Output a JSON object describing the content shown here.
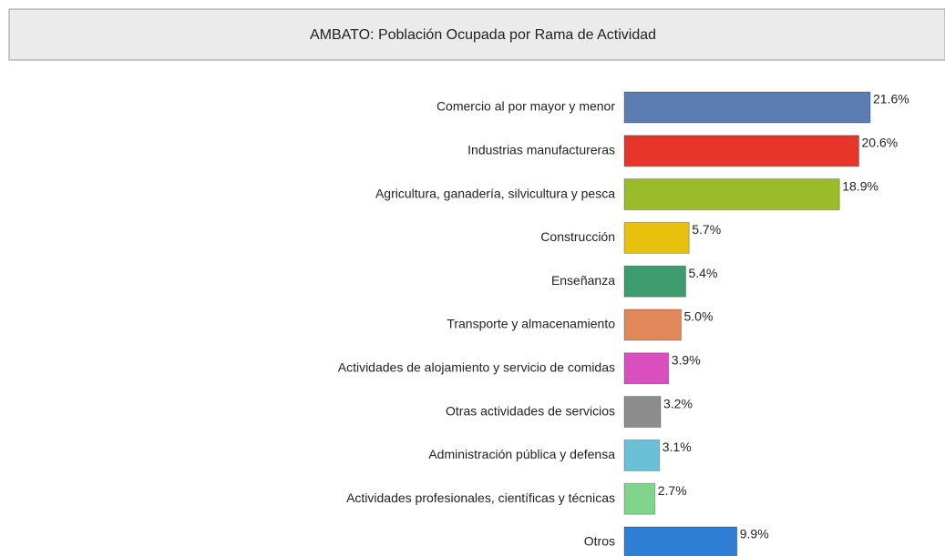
{
  "chart_data": {
    "type": "bar",
    "title": "AMBATO: Población Ocupada por Rama de Actividad",
    "categories": [
      "Comercio al por mayor y menor",
      "Industrias manufactureras",
      "Agricultura, ganadería, silvicultura y pesca",
      "Construcción",
      "Enseñanza",
      "Transporte y almacenamiento",
      "Actividades de alojamiento y servicio de comidas",
      "Otras actividades de servicios",
      "Administración pública y defensa",
      "Actividades profesionales, científicas y técnicas",
      "Otros"
    ],
    "values": [
      21.6,
      20.6,
      18.9,
      5.7,
      5.4,
      5.0,
      3.9,
      3.2,
      3.1,
      2.7,
      9.9
    ],
    "value_labels": [
      "21.6%",
      "20.6%",
      "18.9%",
      "5.7%",
      "5.4%",
      "5.0%",
      "3.9%",
      "3.2%",
      "3.1%",
      "2.7%",
      "9.9%"
    ],
    "colors": [
      "#5b7db1",
      "#e8352c",
      "#9bbb2a",
      "#e8c10f",
      "#3d9c6e",
      "#e0885a",
      "#d94fc0",
      "#8c8c8c",
      "#6ac0d6",
      "#7fd68a",
      "#2f7fd6"
    ]
  }
}
